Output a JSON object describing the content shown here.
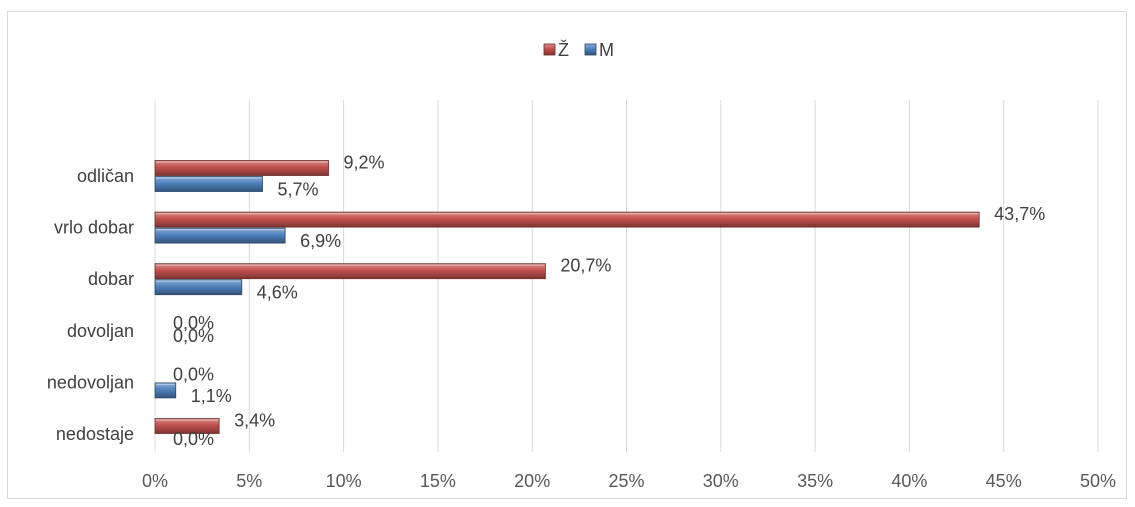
{
  "chart_data": {
    "type": "bar",
    "orientation": "horizontal",
    "categories": [
      "odličan",
      "vrlo dobar",
      "dobar",
      "dovoljan",
      "nedovoljan",
      "nedostaje"
    ],
    "series": [
      {
        "name": "Ž",
        "color": "#c0504d",
        "values": [
          9.2,
          43.7,
          20.7,
          0.0,
          0.0,
          3.4
        ],
        "labels": [
          "9,2%",
          "43,7%",
          "20,7%",
          "0,0%",
          "0,0%",
          "3,4%"
        ]
      },
      {
        "name": "M",
        "color": "#4f81bd",
        "values": [
          5.7,
          6.9,
          4.6,
          0.0,
          1.1,
          0.0
        ],
        "labels": [
          "5,7%",
          "6,9%",
          "4,6%",
          "0,0%",
          "1,1%",
          "0,0%"
        ]
      }
    ],
    "x_ticks": [
      0,
      5,
      10,
      15,
      20,
      25,
      30,
      35,
      40,
      45,
      50
    ],
    "x_tick_labels": [
      "0%",
      "5%",
      "10%",
      "15%",
      "20%",
      "25%",
      "30%",
      "35%",
      "40%",
      "45%",
      "50%"
    ],
    "xlim": [
      0,
      50
    ],
    "grid": true,
    "legend_position": "top"
  }
}
